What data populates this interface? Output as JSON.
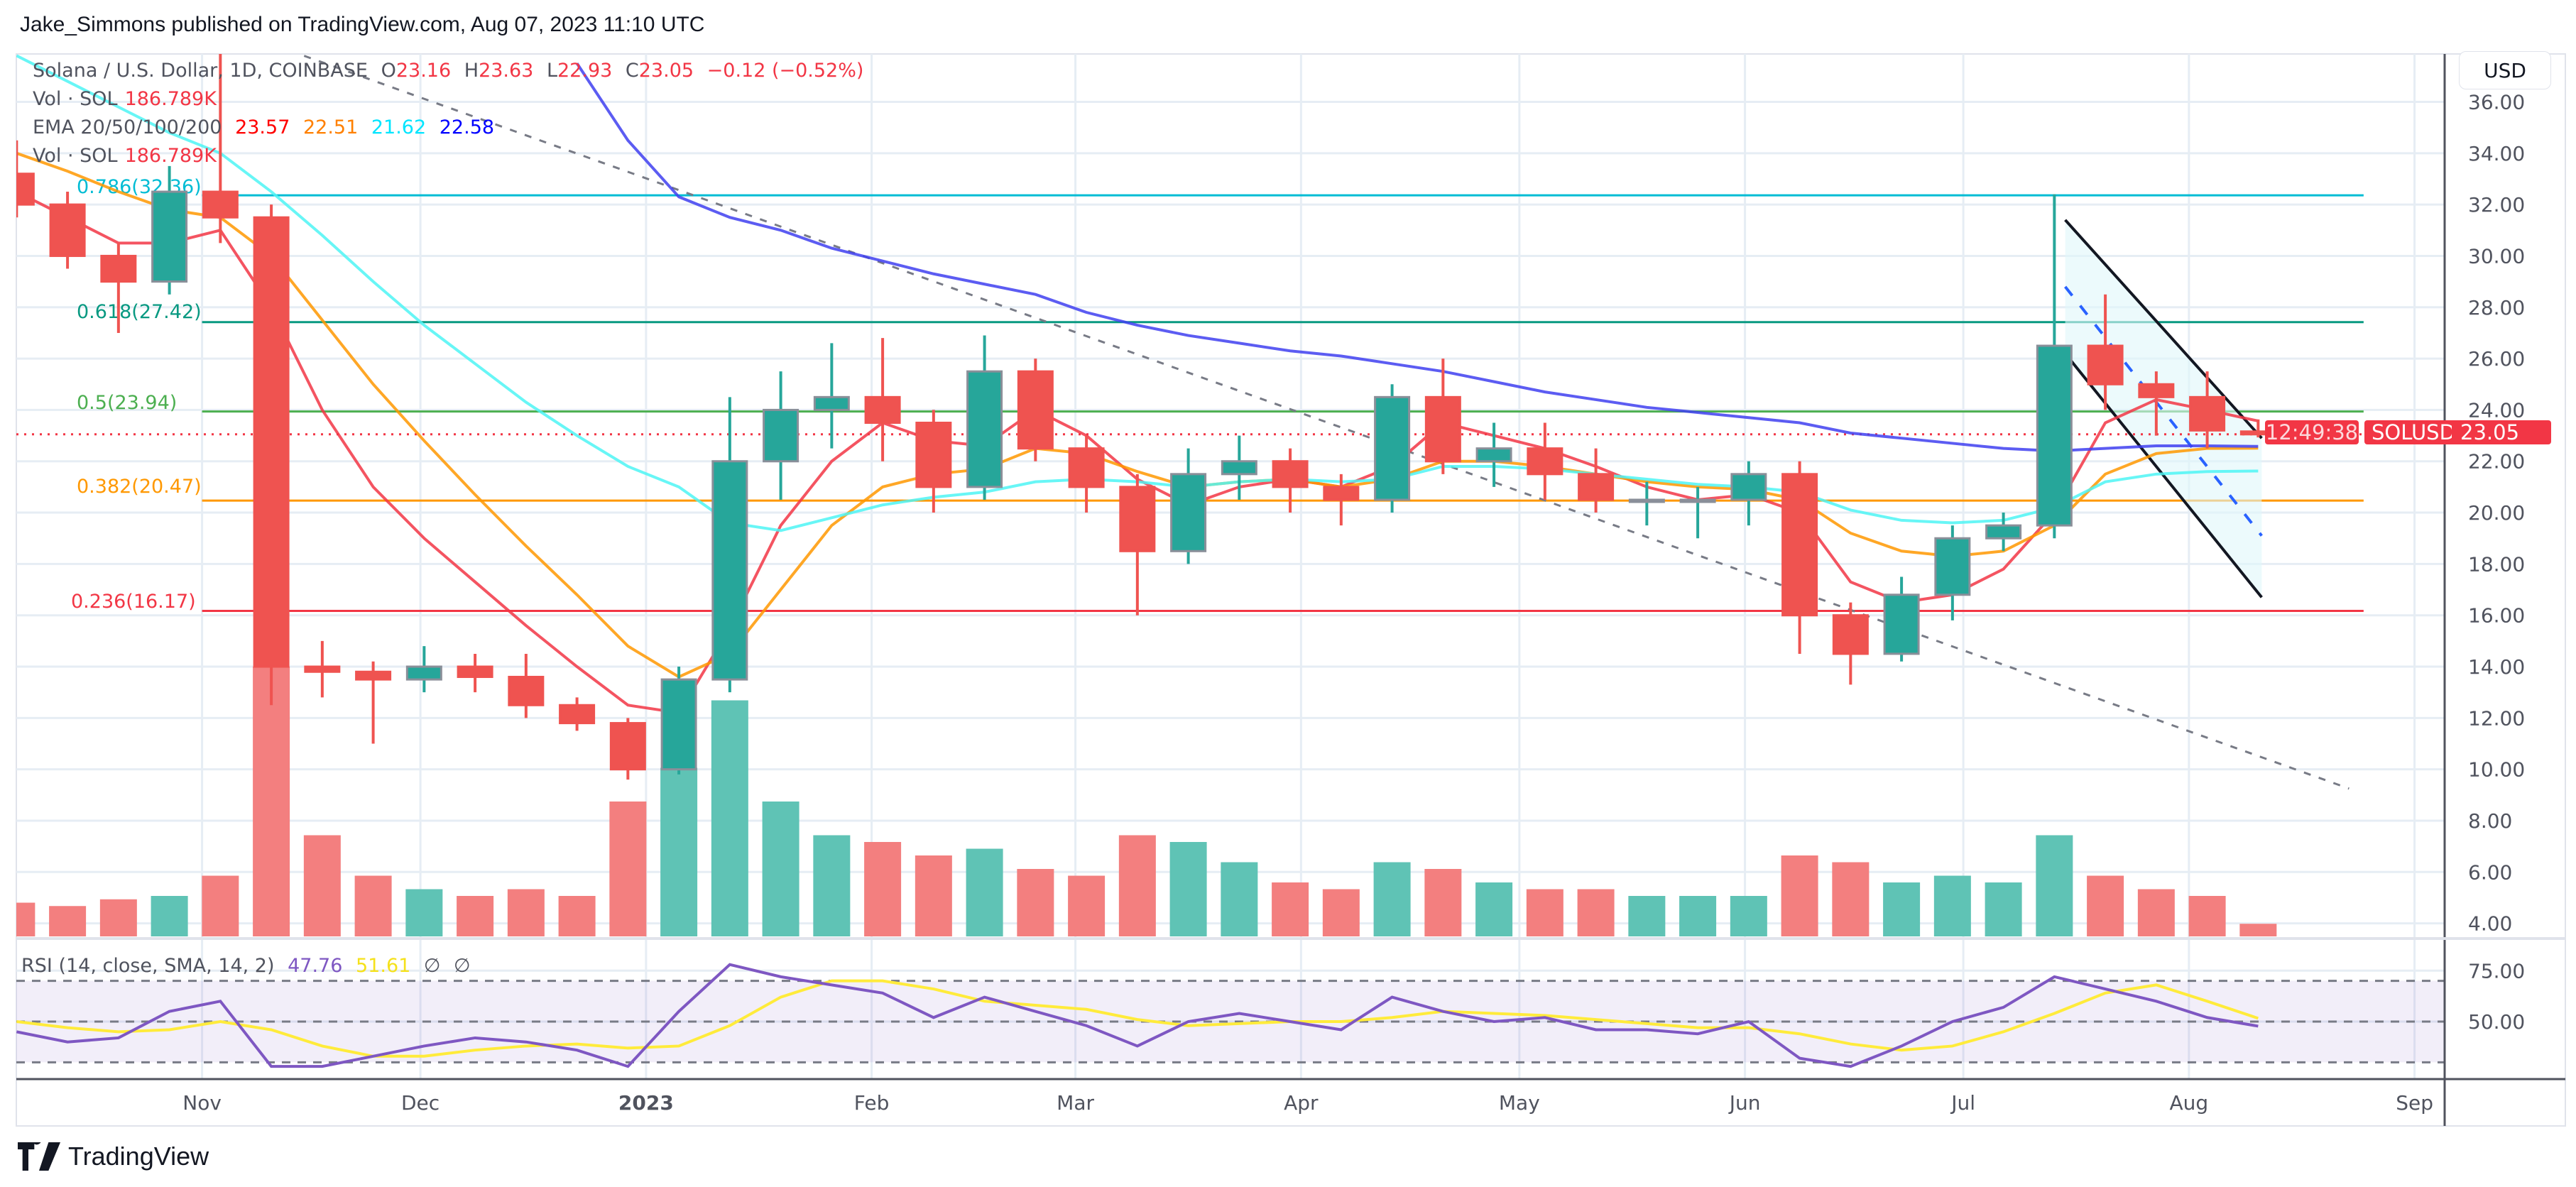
{
  "header": {
    "title": "Jake_Simmons published on TradingView.com, Aug 07, 2023 11:10 UTC"
  },
  "legend": {
    "symbol": "Solana / U.S. Dollar, 1D, COINBASE",
    "o_label": "O",
    "o": "23.16",
    "h_label": "H",
    "h": "23.63",
    "l_label": "L",
    "l": "22.93",
    "c_label": "C",
    "c": "23.05",
    "change": "−0.12 (−0.52%)",
    "vol_label": "Vol · SOL",
    "vol": "186.789K",
    "ema_label": "EMA 20/50/100/200",
    "ema20": "23.57",
    "ema50": "22.51",
    "ema100": "21.62",
    "ema200": "22.58",
    "vol2_label": "Vol · SOL",
    "vol2": "186.789K",
    "rsi_label": "RSI (14, close, SMA, 14, 2)",
    "rsi": "47.76",
    "rsi_ma": "51.61",
    "na1": "∅",
    "na2": "∅"
  },
  "price_axis": {
    "currency": "USD",
    "symbol_tag": "SOLUSD",
    "last_price": "23.05",
    "countdown": "12:49:38"
  },
  "footer": {
    "brand": "TradingView"
  },
  "colors": {
    "up": "#26a69a",
    "down": "#ef5350",
    "ema20": "#f23645",
    "ema50": "#ff9800",
    "ema100": "#4df5f5",
    "ema200": "#3f3ff0",
    "rsi": "#7e57c2",
    "rsi_ma": "#ffeb3b",
    "channel_fill": "#e0f7fa"
  },
  "chart_data": {
    "type": "candlestick",
    "title": "Solana / U.S. Dollar, 1D, COINBASE",
    "ylim": [
      3.5,
      37
    ],
    "price_ticks": [
      "36.00",
      "34.00",
      "32.00",
      "30.00",
      "28.00",
      "26.00",
      "24.00",
      "22.00",
      "20.00",
      "18.00",
      "16.00",
      "14.00",
      "12.00",
      "10.00",
      "8.00",
      "6.00",
      "4.00"
    ],
    "time_ticks": [
      {
        "label": "Nov",
        "date": "2022-11-01"
      },
      {
        "label": "Dec",
        "date": "2022-12-01"
      },
      {
        "label": "2023",
        "date": "2023-01-01",
        "bold": true
      },
      {
        "label": "Feb",
        "date": "2023-02-01"
      },
      {
        "label": "Mar",
        "date": "2023-03-01"
      },
      {
        "label": "Apr",
        "date": "2023-04-01"
      },
      {
        "label": "May",
        "date": "2023-05-01"
      },
      {
        "label": "Jun",
        "date": "2023-06-01"
      },
      {
        "label": "Jul",
        "date": "2023-07-01"
      },
      {
        "label": "Aug",
        "date": "2023-08-01"
      },
      {
        "label": "Sep",
        "date": "2023-09-01"
      }
    ],
    "rsi_ticks": [
      "75.00",
      "50.00"
    ],
    "rsi_bands": [
      70,
      50,
      30
    ],
    "fib_levels": [
      {
        "label": "0.786(32.36)",
        "value": 32.36,
        "color": "#00bcd4"
      },
      {
        "label": "0.618(27.42)",
        "value": 27.42,
        "color": "#089981"
      },
      {
        "label": "0.5(23.94)",
        "value": 23.94,
        "color": "#4caf50"
      },
      {
        "label": "0.382(20.47)",
        "value": 20.47,
        "color": "#ff9800"
      },
      {
        "label": "0.236(16.17)",
        "value": 16.17,
        "color": "#f23645"
      }
    ],
    "fib_range": [
      "2022-11-01",
      "2023-08-25"
    ],
    "trendline": {
      "from": {
        "date": "2022-11-13",
        "price": 38
      },
      "to": {
        "date": "2023-08-23",
        "price": 9.25
      }
    },
    "channel": {
      "upper": {
        "from": {
          "date": "2023-07-15",
          "price": 31.4
        },
        "to": {
          "date": "2023-08-11",
          "price": 22.9
        }
      },
      "lower": {
        "from": {
          "date": "2023-07-15",
          "price": 26.2
        },
        "to": {
          "date": "2023-08-11",
          "price": 16.7
        }
      },
      "mid": {
        "from": {
          "date": "2023-07-15",
          "price": 28.8
        },
        "to": {
          "date": "2023-08-11",
          "price": 19.1
        }
      }
    },
    "last_price": 23.05,
    "columns": [
      "week",
      "open",
      "high",
      "low",
      "close",
      "volume_k",
      "ema20",
      "ema50",
      "ema100",
      "ema200",
      "rsi",
      "rsi_sma"
    ],
    "rows": [
      [
        "2022-10-03",
        33.2,
        34.5,
        31.5,
        32.0,
        500,
        32.5,
        34.0,
        37.8,
        null,
        45,
        50
      ],
      [
        "2022-10-10",
        32.0,
        32.5,
        29.5,
        30.0,
        450,
        31.5,
        33.3,
        36.8,
        null,
        40,
        47
      ],
      [
        "2022-10-17",
        30.0,
        30.5,
        27.0,
        29.0,
        550,
        30.5,
        32.5,
        35.8,
        null,
        42,
        45
      ],
      [
        "2022-10-24",
        29.0,
        33.5,
        28.5,
        32.5,
        600,
        30.5,
        31.8,
        34.8,
        null,
        55,
        46
      ],
      [
        "2022-10-31",
        32.5,
        38.8,
        30.5,
        31.5,
        900,
        31.0,
        31.5,
        34.0,
        null,
        60,
        50
      ],
      [
        "2022-11-07",
        31.5,
        32.0,
        12.5,
        14.0,
        4000,
        28.0,
        30.0,
        32.5,
        null,
        28,
        46
      ],
      [
        "2022-11-14",
        14.0,
        15.0,
        12.8,
        13.8,
        1500,
        24.0,
        27.5,
        30.8,
        null,
        28,
        38
      ],
      [
        "2022-11-21",
        13.8,
        14.2,
        11.0,
        13.5,
        900,
        21.0,
        25.0,
        29.0,
        null,
        33,
        33
      ],
      [
        "2022-11-28",
        13.5,
        14.8,
        13.0,
        14.0,
        700,
        19.0,
        22.8,
        27.3,
        null,
        38,
        33
      ],
      [
        "2022-12-05",
        14.0,
        14.5,
        13.0,
        13.6,
        600,
        17.3,
        20.7,
        25.8,
        null,
        42,
        36
      ],
      [
        "2022-12-12",
        13.6,
        14.5,
        12.0,
        12.5,
        700,
        15.6,
        18.7,
        24.3,
        null,
        40,
        38
      ],
      [
        "2022-12-19",
        12.5,
        12.8,
        11.5,
        11.8,
        600,
        14.0,
        16.8,
        23.0,
        37.5,
        36,
        39
      ],
      [
        "2022-12-26",
        11.8,
        12.0,
        9.6,
        10.0,
        2000,
        12.5,
        14.8,
        21.8,
        34.5,
        28,
        37
      ],
      [
        "2023-01-02",
        10.0,
        14.0,
        9.8,
        13.5,
        2500,
        12.2,
        13.6,
        21.0,
        32.3,
        55,
        38
      ],
      [
        "2023-01-09",
        13.5,
        24.5,
        13.0,
        22.0,
        3500,
        15.5,
        14.5,
        19.6,
        31.5,
        78,
        48
      ],
      [
        "2023-01-16",
        22.0,
        25.5,
        20.5,
        24.0,
        2000,
        19.5,
        17.0,
        19.3,
        31.0,
        72,
        62
      ],
      [
        "2023-01-23",
        24.0,
        26.6,
        22.5,
        24.5,
        1500,
        22.0,
        19.5,
        19.8,
        30.3,
        68,
        70
      ],
      [
        "2023-01-30",
        24.5,
        26.8,
        22.0,
        23.5,
        1400,
        23.5,
        21.0,
        20.3,
        29.8,
        64,
        70
      ],
      [
        "2023-02-06",
        23.5,
        24.0,
        20.0,
        21.0,
        1200,
        22.8,
        21.5,
        20.6,
        29.3,
        52,
        66
      ],
      [
        "2023-02-13",
        21.0,
        26.9,
        20.5,
        25.5,
        1300,
        22.6,
        21.7,
        20.8,
        28.9,
        62,
        60
      ],
      [
        "2023-02-20",
        25.5,
        26.0,
        22.0,
        22.5,
        1000,
        24.0,
        22.5,
        21.2,
        28.5,
        55,
        58
      ],
      [
        "2023-02-27",
        22.5,
        23.0,
        20.0,
        21.0,
        900,
        23.0,
        22.3,
        21.3,
        27.8,
        48,
        56
      ],
      [
        "2023-03-06",
        21.0,
        21.5,
        16.0,
        18.5,
        1500,
        21.3,
        21.6,
        21.2,
        27.3,
        38,
        51
      ],
      [
        "2023-03-13",
        18.5,
        22.5,
        18.0,
        21.5,
        1400,
        20.3,
        21.0,
        21.0,
        26.9,
        50,
        48
      ],
      [
        "2023-03-20",
        21.5,
        23.0,
        20.5,
        22.0,
        1100,
        21.0,
        21.2,
        21.2,
        26.6,
        54,
        49
      ],
      [
        "2023-03-27",
        22.0,
        22.5,
        20.0,
        21.0,
        800,
        21.3,
        21.3,
        21.3,
        26.3,
        50,
        50
      ],
      [
        "2023-04-03",
        21.0,
        21.5,
        19.5,
        20.5,
        700,
        21.0,
        21.0,
        21.2,
        26.1,
        46,
        50
      ],
      [
        "2023-04-10",
        20.5,
        25.0,
        20.0,
        24.5,
        1100,
        21.8,
        21.3,
        21.3,
        25.8,
        62,
        52
      ],
      [
        "2023-04-17",
        24.5,
        26.0,
        21.5,
        22.0,
        1000,
        23.5,
        22.0,
        21.8,
        25.5,
        55,
        55
      ],
      [
        "2023-04-24",
        22.0,
        23.5,
        21.0,
        22.5,
        800,
        23.0,
        22.0,
        21.8,
        25.1,
        50,
        54
      ],
      [
        "2023-05-01",
        22.5,
        23.5,
        20.5,
        21.5,
        700,
        22.5,
        21.8,
        21.7,
        24.7,
        52,
        53
      ],
      [
        "2023-05-08",
        21.5,
        22.5,
        20.0,
        20.5,
        700,
        21.8,
        21.5,
        21.5,
        24.4,
        46,
        51
      ],
      [
        "2023-05-15",
        20.5,
        21.2,
        19.5,
        20.5,
        600,
        21.0,
        21.2,
        21.3,
        24.1,
        46,
        49
      ],
      [
        "2023-05-22",
        20.5,
        21.0,
        19.0,
        20.5,
        600,
        20.5,
        21.0,
        21.1,
        23.9,
        44,
        47
      ],
      [
        "2023-05-29",
        20.5,
        22.0,
        19.5,
        21.5,
        600,
        20.7,
        20.9,
        21.0,
        23.7,
        50,
        47
      ],
      [
        "2023-06-05",
        21.5,
        22.0,
        14.5,
        16.0,
        1200,
        20.0,
        20.5,
        20.8,
        23.5,
        32,
        44
      ],
      [
        "2023-06-12",
        16.0,
        16.5,
        13.3,
        14.5,
        1100,
        17.3,
        19.2,
        20.1,
        23.1,
        28,
        39
      ],
      [
        "2023-06-19",
        14.5,
        17.5,
        14.2,
        16.8,
        800,
        16.5,
        18.5,
        19.7,
        22.9,
        38,
        36
      ],
      [
        "2023-06-26",
        16.8,
        19.5,
        15.8,
        19.0,
        900,
        16.8,
        18.3,
        19.6,
        22.7,
        50,
        38
      ],
      [
        "2023-07-03",
        19.0,
        20.0,
        18.5,
        19.5,
        800,
        17.8,
        18.5,
        19.7,
        22.5,
        57,
        45
      ],
      [
        "2023-07-10",
        19.5,
        32.4,
        19.0,
        26.5,
        1500,
        20.0,
        19.5,
        20.2,
        22.4,
        72,
        54
      ],
      [
        "2023-07-17",
        26.5,
        28.5,
        24.0,
        25.0,
        900,
        23.5,
        21.5,
        21.2,
        22.5,
        66,
        64
      ],
      [
        "2023-07-24",
        25.0,
        25.5,
        23.0,
        24.5,
        700,
        24.4,
        22.3,
        21.5,
        22.6,
        60,
        68
      ],
      [
        "2023-07-31",
        24.5,
        25.5,
        22.5,
        23.2,
        600,
        24.0,
        22.5,
        21.6,
        22.6,
        52,
        60
      ],
      [
        "2023-08-07",
        23.16,
        23.63,
        22.93,
        23.05,
        187,
        23.57,
        22.51,
        21.62,
        22.58,
        47.76,
        51.61
      ]
    ]
  }
}
